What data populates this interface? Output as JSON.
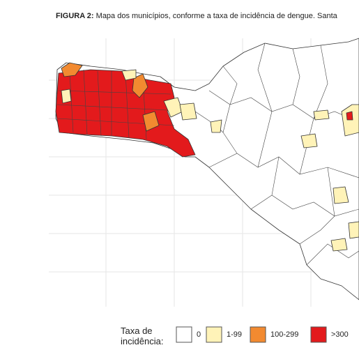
{
  "caption": {
    "label": "FIGURA 2:",
    "text": "Mapa dos municípios, conforme a taxa de incidência de dengue. Santa"
  },
  "legend": {
    "title": [
      "Taxa de",
      "incidência:"
    ],
    "items": [
      {
        "label": "0",
        "color": "#ffffff"
      },
      {
        "label": "1-99",
        "color": "#fff3b8"
      },
      {
        "label": "100-299",
        "color": "#f28a30"
      },
      {
        "label": ">300",
        "color": "#e31a1c"
      }
    ]
  }
}
